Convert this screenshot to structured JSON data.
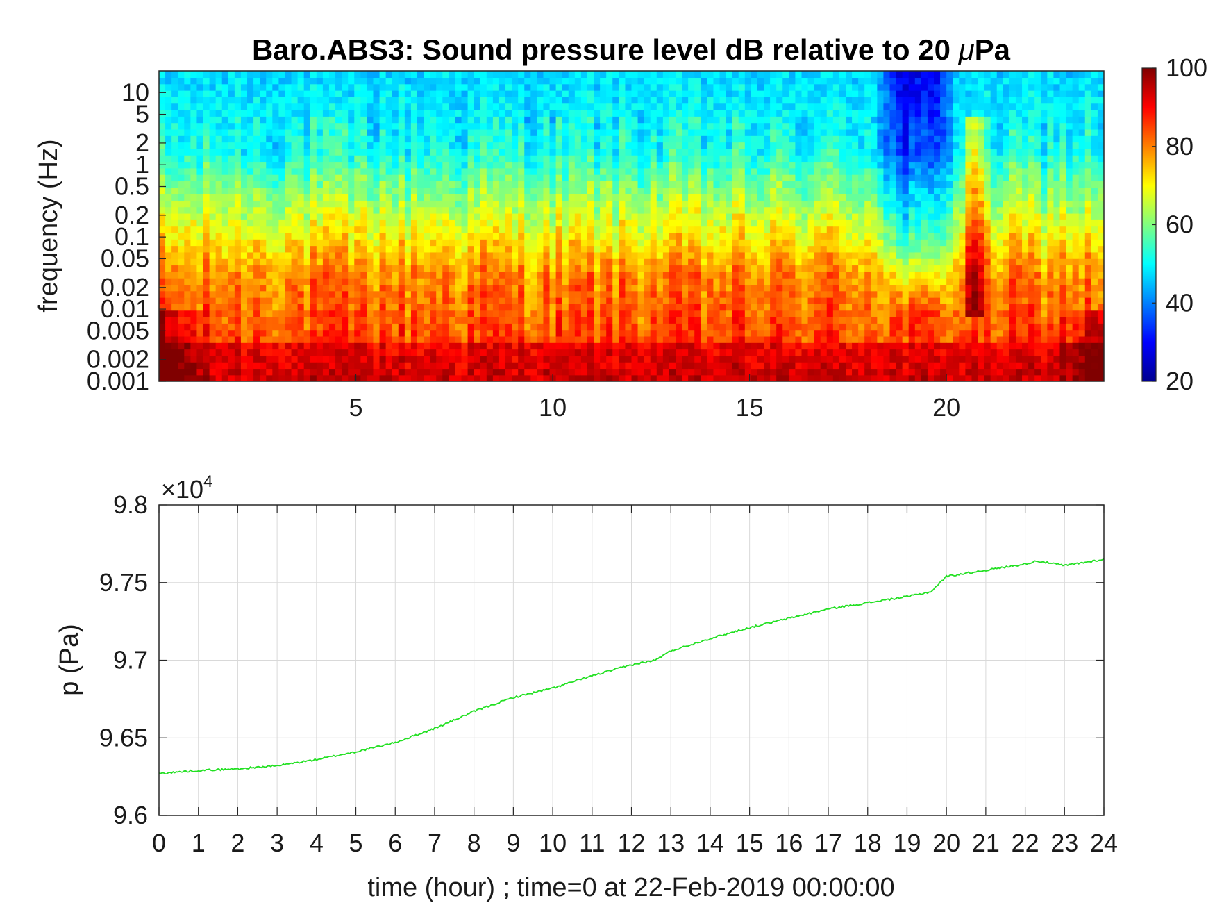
{
  "chart_data": [
    {
      "type": "heatmap",
      "title": "Baro.ABS3: Sound pressure level dB relative to 20 μPa",
      "title_prefix": "Baro.ABS3: Sound pressure level dB relative to 20 ",
      "title_mu": "μ",
      "title_suffix": "Pa",
      "ylabel": "frequency (Hz)",
      "xlabel": "",
      "xlim": [
        0,
        24
      ],
      "ylim": [
        0.001,
        20
      ],
      "yscale": "log",
      "x_ticks": [
        {
          "value": 5,
          "label": "5"
        },
        {
          "value": 10,
          "label": "10"
        },
        {
          "value": 15,
          "label": "15"
        },
        {
          "value": 20,
          "label": "20"
        }
      ],
      "y_ticks": [
        {
          "value": 10,
          "label": "10"
        },
        {
          "value": 5,
          "label": "5"
        },
        {
          "value": 2,
          "label": "2"
        },
        {
          "value": 1,
          "label": "1"
        },
        {
          "value": 0.5,
          "label": "0.5"
        },
        {
          "value": 0.2,
          "label": "0.2"
        },
        {
          "value": 0.1,
          "label": "0.1"
        },
        {
          "value": 0.05,
          "label": "0.05"
        },
        {
          "value": 0.02,
          "label": "0.02"
        },
        {
          "value": 0.01,
          "label": "0.01"
        },
        {
          "value": 0.005,
          "label": "0.005"
        },
        {
          "value": 0.002,
          "label": "0.002"
        },
        {
          "value": 0.001,
          "label": "0.001"
        }
      ],
      "colormap": "jet",
      "colorbar": {
        "range": [
          20,
          100
        ],
        "ticks": [
          {
            "value": 100,
            "label": "100"
          },
          {
            "value": 80,
            "label": "80"
          },
          {
            "value": 60,
            "label": "60"
          },
          {
            "value": 40,
            "label": "40"
          },
          {
            "value": 20,
            "label": "20"
          }
        ]
      },
      "quiet_period_hours": [
        18.2,
        20.3
      ],
      "loud_burst_hours": [
        20.5,
        21.0
      ]
    },
    {
      "type": "line",
      "xlabel": "time (hour) ; time=0 at 22-Feb-2019 00:00:00",
      "ylabel": "p (Pa)",
      "y_multiplier": "×10",
      "y_multiplier_exp": "4",
      "xlim": [
        0,
        24
      ],
      "ylim": [
        9.6,
        9.8
      ],
      "grid": true,
      "line_color": "#22e022",
      "x_ticks": [
        "0",
        "1",
        "2",
        "3",
        "4",
        "5",
        "6",
        "7",
        "8",
        "9",
        "10",
        "11",
        "12",
        "13",
        "14",
        "15",
        "16",
        "17",
        "18",
        "19",
        "20",
        "21",
        "22",
        "23",
        "24"
      ],
      "y_ticks": [
        {
          "value": 9.6,
          "label": "9.6"
        },
        {
          "value": 9.65,
          "label": "9.65"
        },
        {
          "value": 9.7,
          "label": "9.7"
        },
        {
          "value": 9.75,
          "label": "9.75"
        },
        {
          "value": 9.8,
          "label": "9.8"
        }
      ],
      "series": [
        {
          "x": [
            0,
            1,
            2,
            3,
            4,
            5,
            6,
            7,
            8,
            9,
            10,
            11,
            12,
            12.6,
            13,
            14,
            15,
            16,
            17,
            18,
            19,
            19.6,
            20,
            21,
            22,
            22.3,
            23,
            24
          ],
          "y": [
            9.627,
            9.629,
            9.63,
            9.632,
            9.636,
            9.641,
            9.647,
            9.656,
            9.667,
            9.676,
            9.682,
            9.69,
            9.697,
            9.7,
            9.706,
            9.714,
            9.721,
            9.727,
            9.733,
            9.737,
            9.741,
            9.744,
            9.754,
            9.758,
            9.762,
            9.764,
            9.761,
            9.765
          ]
        }
      ]
    }
  ]
}
